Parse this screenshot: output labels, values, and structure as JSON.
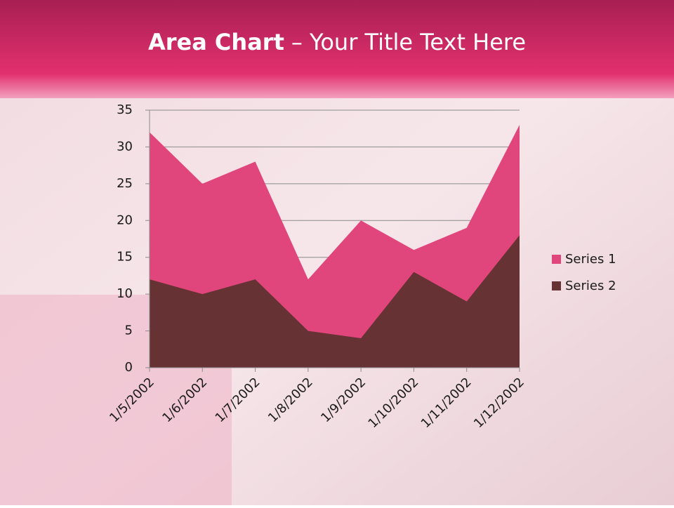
{
  "chart_data": {
    "type": "area",
    "title": {
      "emphasis": "Area Chart",
      "rest": "– Your Title Text Here"
    },
    "categories": [
      "1/5/2002",
      "1/6/2002",
      "1/7/2002",
      "1/8/2002",
      "1/9/2002",
      "1/10/2002",
      "1/11/2002",
      "1/12/2002"
    ],
    "series": [
      {
        "name": "Series 1",
        "color": "#e0457b",
        "values": [
          32,
          25,
          28,
          12,
          20,
          16,
          19,
          33
        ]
      },
      {
        "name": "Series 2",
        "color": "#663234",
        "values": [
          12,
          10,
          12,
          5,
          4,
          13,
          9,
          18
        ]
      }
    ],
    "ylim": [
      0,
      35
    ],
    "yticks": [
      0,
      5,
      10,
      15,
      20,
      25,
      30,
      35
    ],
    "grid": true,
    "legend": "right"
  }
}
